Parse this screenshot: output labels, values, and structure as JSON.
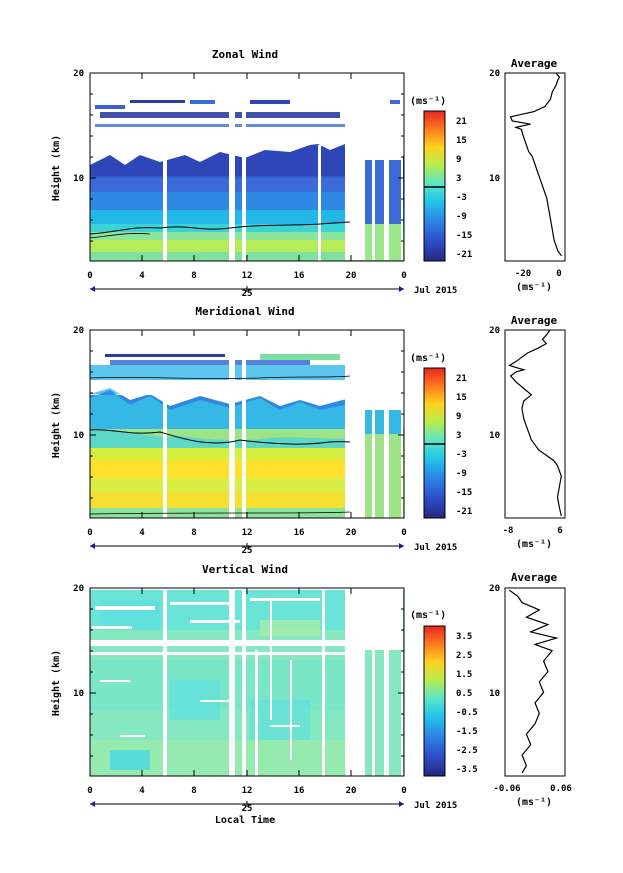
{
  "chart_data": [
    {
      "type": "heatmap",
      "title": "Zonal Wind",
      "ylabel": "Height (km)",
      "ylim": [
        2,
        20
      ],
      "y_ticks": [
        "10",
        "20"
      ],
      "x_ticks": [
        "0",
        "4",
        "8",
        "12",
        "16",
        "20",
        "0"
      ],
      "date_tick": "25",
      "date_label": "Jul 2015",
      "colorbar": {
        "unit": "(ms⁻¹)",
        "ticks": [
          "21",
          "15",
          "9",
          "3",
          "-3",
          "-9",
          "-15",
          "-21"
        ],
        "range": [
          -24,
          24
        ],
        "contour_value": 0
      },
      "profile": {
        "title": "Average",
        "x_ticks": [
          "-20",
          "0"
        ],
        "xlabel": "(ms⁻¹)",
        "xlim": [
          -30,
          3
        ],
        "points": [
          [
            1,
            2.5
          ],
          [
            -1,
            3
          ],
          [
            -3,
            4
          ],
          [
            -4,
            5
          ],
          [
            -5,
            6
          ],
          [
            -6,
            7
          ],
          [
            -7,
            8
          ],
          [
            -9,
            9
          ],
          [
            -11,
            10
          ],
          [
            -13,
            11
          ],
          [
            -15,
            12
          ],
          [
            -17,
            12.5
          ],
          [
            -18,
            13
          ],
          [
            -19,
            13.5
          ],
          [
            -20,
            14
          ],
          [
            -21,
            14.6
          ],
          [
            -24,
            14.8
          ],
          [
            -16,
            15.1
          ],
          [
            -26,
            15.4
          ],
          [
            -27,
            15.8
          ],
          [
            -22,
            16
          ],
          [
            -14,
            16.3
          ],
          [
            -8,
            16.8
          ],
          [
            -5,
            17.5
          ],
          [
            -4,
            18.2
          ],
          [
            -2,
            18.8
          ],
          [
            -1,
            19.3
          ],
          [
            0,
            19.6
          ],
          [
            -2,
            20
          ]
        ]
      }
    },
    {
      "type": "heatmap",
      "title": "Meridional Wind",
      "ylabel": "Height (km)",
      "ylim": [
        2,
        20
      ],
      "y_ticks": [
        "10",
        "20"
      ],
      "x_ticks": [
        "0",
        "4",
        "8",
        "12",
        "16",
        "20",
        "0"
      ],
      "date_tick": "25",
      "date_label": "Jul 2015",
      "colorbar": {
        "unit": "(ms⁻¹)",
        "ticks": [
          "21",
          "15",
          "9",
          "3",
          "-3",
          "-9",
          "-15",
          "-21"
        ],
        "range": [
          -24,
          24
        ],
        "contour_value": 0
      },
      "profile": {
        "title": "Average",
        "x_ticks": [
          "-8",
          "6"
        ],
        "xlabel": "(ms⁻¹)",
        "xlim": [
          -9,
          7
        ],
        "points": [
          [
            6,
            2.2
          ],
          [
            5.5,
            3
          ],
          [
            5,
            4
          ],
          [
            5.5,
            5
          ],
          [
            6,
            6
          ],
          [
            5,
            7
          ],
          [
            4,
            7.5
          ],
          [
            2,
            8
          ],
          [
            0,
            8.5
          ],
          [
            -2,
            9.5
          ],
          [
            -3,
            10.5
          ],
          [
            -4,
            11.5
          ],
          [
            -4.5,
            12.5
          ],
          [
            -4,
            13.2
          ],
          [
            -2,
            13.8
          ],
          [
            -4,
            14.4
          ],
          [
            -6,
            15
          ],
          [
            -7.5,
            15.6
          ],
          [
            -6,
            16
          ],
          [
            -4,
            16.2
          ],
          [
            -6,
            16.4
          ],
          [
            -7.8,
            16.6
          ],
          [
            -6,
            17
          ],
          [
            -3,
            17.8
          ],
          [
            0,
            18.3
          ],
          [
            2,
            18.7
          ],
          [
            1,
            19.1
          ],
          [
            2,
            19.5
          ],
          [
            3,
            20
          ]
        ]
      }
    },
    {
      "type": "heatmap",
      "title": "Vertical Wind",
      "ylabel": "Height (km)",
      "xlabel": "Local Time",
      "ylim": [
        2,
        20
      ],
      "y_ticks": [
        "10",
        "20"
      ],
      "x_ticks": [
        "0",
        "4",
        "8",
        "12",
        "16",
        "20",
        "0"
      ],
      "date_tick": "25",
      "date_label": "Jul 2015",
      "colorbar": {
        "unit": "(ms⁻¹)",
        "ticks": [
          "3.5",
          "2.5",
          "1.5",
          "0.5",
          "-0.5",
          "-1.5",
          "-2.5",
          "-3.5"
        ],
        "range": [
          -4,
          4
        ]
      },
      "profile": {
        "title": "Average",
        "x_ticks": [
          "-0.06",
          "0.06"
        ],
        "xlabel": "(ms⁻¹)",
        "xlim": [
          -0.07,
          0.07
        ],
        "points": [
          [
            -0.03,
            2.3
          ],
          [
            -0.02,
            3
          ],
          [
            -0.03,
            4
          ],
          [
            -0.01,
            5
          ],
          [
            -0.02,
            6
          ],
          [
            0.0,
            7
          ],
          [
            0.01,
            8
          ],
          [
            0.0,
            9
          ],
          [
            0.02,
            10
          ],
          [
            0.01,
            11
          ],
          [
            0.03,
            12
          ],
          [
            0.02,
            13
          ],
          [
            0.04,
            14
          ],
          [
            0.0,
            14.6
          ],
          [
            0.05,
            15.2
          ],
          [
            -0.01,
            15.8
          ],
          [
            0.03,
            16.5
          ],
          [
            -0.02,
            17.2
          ],
          [
            0.01,
            17.9
          ],
          [
            -0.03,
            18.6
          ],
          [
            -0.04,
            19.2
          ],
          [
            -0.06,
            19.8
          ]
        ]
      }
    }
  ]
}
